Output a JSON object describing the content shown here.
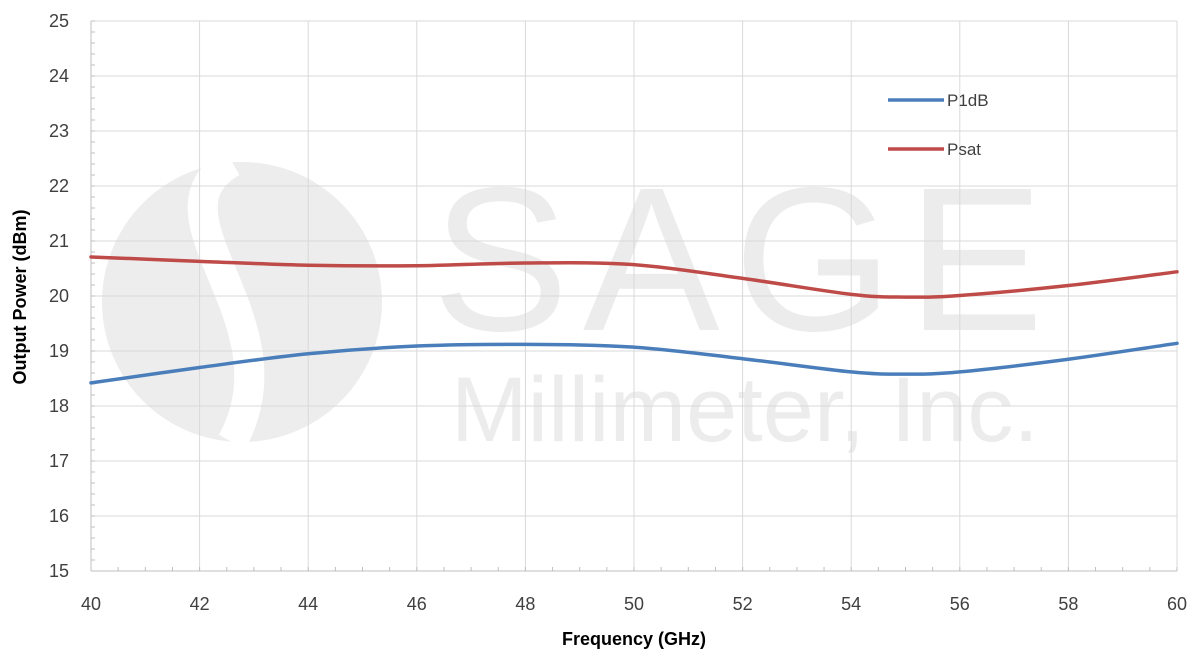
{
  "chart_data": {
    "type": "line",
    "xlabel": "Frequency (GHz)",
    "ylabel": "Output Power (dBm)",
    "xlim": [
      40,
      60
    ],
    "ylim": [
      15,
      25
    ],
    "x_ticks": [
      40,
      42,
      44,
      46,
      48,
      50,
      52,
      54,
      56,
      58,
      60
    ],
    "y_ticks": [
      15,
      16,
      17,
      18,
      19,
      20,
      21,
      22,
      23,
      24,
      25
    ],
    "grid": true,
    "legend_position": "top-right",
    "watermark": {
      "line1": "SAGE",
      "line2": "Millimeter, Inc."
    },
    "series": [
      {
        "name": "P1dB",
        "color": "#4a7ebb",
        "x": [
          40,
          42,
          44,
          46,
          48,
          50,
          52,
          54,
          55,
          56,
          58,
          60
        ],
        "y": [
          18.42,
          18.7,
          18.95,
          19.09,
          19.12,
          19.07,
          18.86,
          18.62,
          18.58,
          18.62,
          18.85,
          19.14
        ]
      },
      {
        "name": "Psat",
        "color": "#be4b48",
        "x": [
          40,
          42,
          44,
          46,
          48,
          50,
          52,
          54,
          55,
          56,
          58,
          60
        ],
        "y": [
          20.71,
          20.63,
          20.56,
          20.55,
          20.6,
          20.57,
          20.32,
          20.03,
          19.98,
          20.01,
          20.19,
          20.44
        ]
      }
    ]
  }
}
